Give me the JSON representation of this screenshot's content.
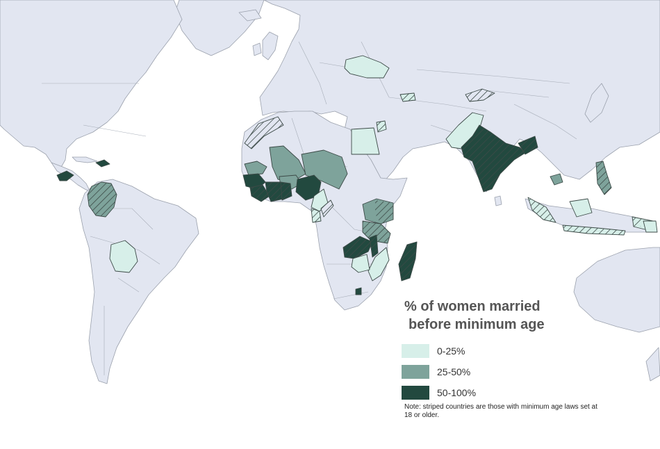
{
  "legend": {
    "title_line1": "% of women married",
    "title_line2": "before minimum age",
    "items": [
      {
        "label": "0-25%",
        "color": "#d7efe9"
      },
      {
        "label": "25-50%",
        "color": "#7ea39b"
      },
      {
        "label": "50-100%",
        "color": "#22493f"
      }
    ],
    "note": "Note: striped countries are those with minimum age laws set at 18 or older."
  },
  "colors": {
    "ocean": "#ffffff",
    "land": "#e2e6f1",
    "border": "#9aa0ac",
    "stripe": "#3c4a47"
  },
  "highlighted_countries": [
    {
      "name": "Honduras",
      "category": "50-100%",
      "striped": false
    },
    {
      "name": "Dominican Republic",
      "category": "50-100%",
      "striped": false
    },
    {
      "name": "Colombia",
      "category": "25-50%",
      "striped": true
    },
    {
      "name": "Bolivia",
      "category": "0-25%",
      "striped": false
    },
    {
      "name": "Western Sahara",
      "category": "none",
      "striped": true
    },
    {
      "name": "Mali",
      "category": "25-50%",
      "striped": false
    },
    {
      "name": "Niger",
      "category": "25-50%",
      "striped": false
    },
    {
      "name": "Senegal",
      "category": "25-50%",
      "striped": false
    },
    {
      "name": "Guinea",
      "category": "50-100%",
      "striped": false
    },
    {
      "name": "Sierra Leone",
      "category": "50-100%",
      "striped": true
    },
    {
      "name": "Liberia",
      "category": "50-100%",
      "striped": true
    },
    {
      "name": "Cote d'Ivoire",
      "category": "50-100%",
      "striped": true
    },
    {
      "name": "Ghana",
      "category": "50-100%",
      "striped": true
    },
    {
      "name": "Burkina Faso",
      "category": "25-50%",
      "striped": false
    },
    {
      "name": "Nigeria",
      "category": "50-100%",
      "striped": false
    },
    {
      "name": "Cameroon",
      "category": "0-25%",
      "striped": false
    },
    {
      "name": "Gabon",
      "category": "0-25%",
      "striped": true
    },
    {
      "name": "Egypt",
      "category": "0-25%",
      "striped": false
    },
    {
      "name": "Uganda",
      "category": "25-50%",
      "striped": false
    },
    {
      "name": "Kenya",
      "category": "25-50%",
      "striped": true
    },
    {
      "name": "Tanzania",
      "category": "25-50%",
      "striped": true
    },
    {
      "name": "Zambia",
      "category": "50-100%",
      "striped": true
    },
    {
      "name": "Malawi",
      "category": "50-100%",
      "striped": true
    },
    {
      "name": "Mozambique",
      "category": "0-25%",
      "striped": false
    },
    {
      "name": "Zimbabwe",
      "category": "0-25%",
      "striped": false
    },
    {
      "name": "Swaziland",
      "category": "50-100%",
      "striped": false
    },
    {
      "name": "Madagascar",
      "category": "50-100%",
      "striped": true
    },
    {
      "name": "Ukraine",
      "category": "0-25%",
      "striped": false
    },
    {
      "name": "Georgia",
      "category": "0-25%",
      "striped": true
    },
    {
      "name": "Kazakhstan",
      "category": "none",
      "striped": true
    },
    {
      "name": "Jordan",
      "category": "0-25%",
      "striped": true
    },
    {
      "name": "Pakistan",
      "category": "0-25%",
      "striped": false
    },
    {
      "name": "India",
      "category": "50-100%",
      "striped": true
    },
    {
      "name": "Nepal",
      "category": "50-100%",
      "striped": true
    },
    {
      "name": "Bangladesh",
      "category": "50-100%",
      "striped": true
    },
    {
      "name": "Cambodia",
      "category": "25-50%",
      "striped": false
    },
    {
      "name": "Philippines",
      "category": "25-50%",
      "striped": true
    },
    {
      "name": "Indonesia",
      "category": "0-25%",
      "striped": true
    },
    {
      "name": "Timor-Leste",
      "category": "0-25%",
      "striped": false
    }
  ]
}
